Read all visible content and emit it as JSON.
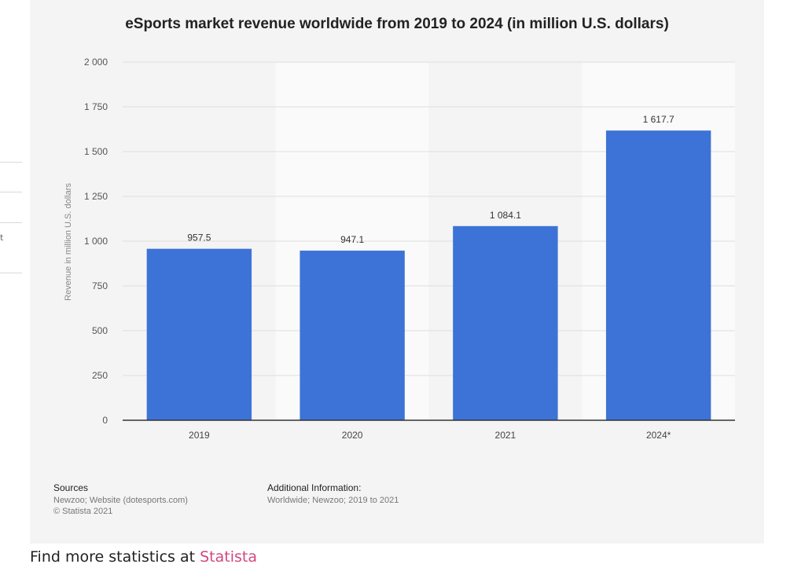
{
  "left_fragment": {
    "glyph": "t"
  },
  "chart_data": {
    "type": "bar",
    "title": "eSports market revenue worldwide from 2019 to 2024 (in million U.S. dollars)",
    "xlabel": "",
    "ylabel": "Revenue in million U.S. dollars",
    "categories": [
      "2019",
      "2020",
      "2021",
      "2024*"
    ],
    "values": [
      957.5,
      947.1,
      1084.1,
      1617.7
    ],
    "value_labels": [
      "957.5",
      "947.1",
      "1 084.1",
      "1 617.7"
    ],
    "ylim": [
      0,
      2000
    ],
    "yticks": [
      0,
      250,
      500,
      750,
      1000,
      1250,
      1500,
      1750,
      2000
    ],
    "ytick_labels": [
      "0",
      "250",
      "500",
      "750",
      "1 000",
      "1 250",
      "1 500",
      "1 750",
      "2 000"
    ],
    "grid": true,
    "legend": "none",
    "bar_color": "#3d73d6"
  },
  "sources": {
    "title": "Sources",
    "line1": "Newzoo; Website (dotesports.com)",
    "line2": "© Statista 2021"
  },
  "additional_info": {
    "title": "Additional Information:",
    "line1": "Worldwide; Newzoo; 2019 to 2021"
  },
  "footer": {
    "prefix": "Find more statistics at",
    "link": "Statista"
  },
  "colors": {
    "bar": "#3d73d6",
    "link": "#d4477e",
    "card_bg": "#f4f4f4"
  }
}
